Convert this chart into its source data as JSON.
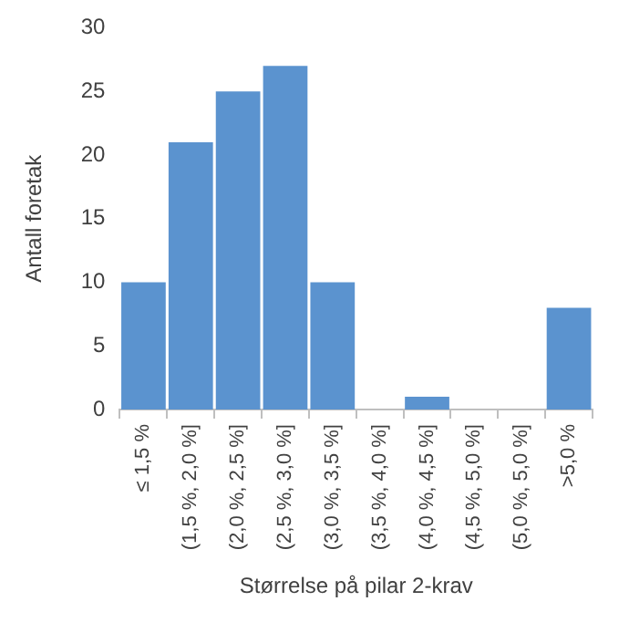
{
  "chart_data": {
    "type": "bar",
    "xlabel": "Størrelse på pilar 2-krav",
    "ylabel": "Antall foretak",
    "categories": [
      "≤ 1,5 %",
      "(1,5 %, 2,0 %]",
      "(2,0 %, 2,5 %]",
      "(2,5 %, 3,0 %]",
      "(3,0 %, 3,5 %]",
      "(3,5 %, 4,0 %]",
      "(4,0 %, 4,5 %]",
      "(4,5 %, 5,0 %]",
      "(5,0 %, 5,0 %]",
      ">5,0 %"
    ],
    "values": [
      10,
      21,
      25,
      27,
      10,
      0,
      1,
      0,
      0,
      8
    ],
    "color": "#5b93cf",
    "ylim": [
      0,
      30
    ],
    "yticks": [
      0,
      5,
      10,
      15,
      20,
      25,
      30
    ],
    "grid": false,
    "legend": false
  }
}
